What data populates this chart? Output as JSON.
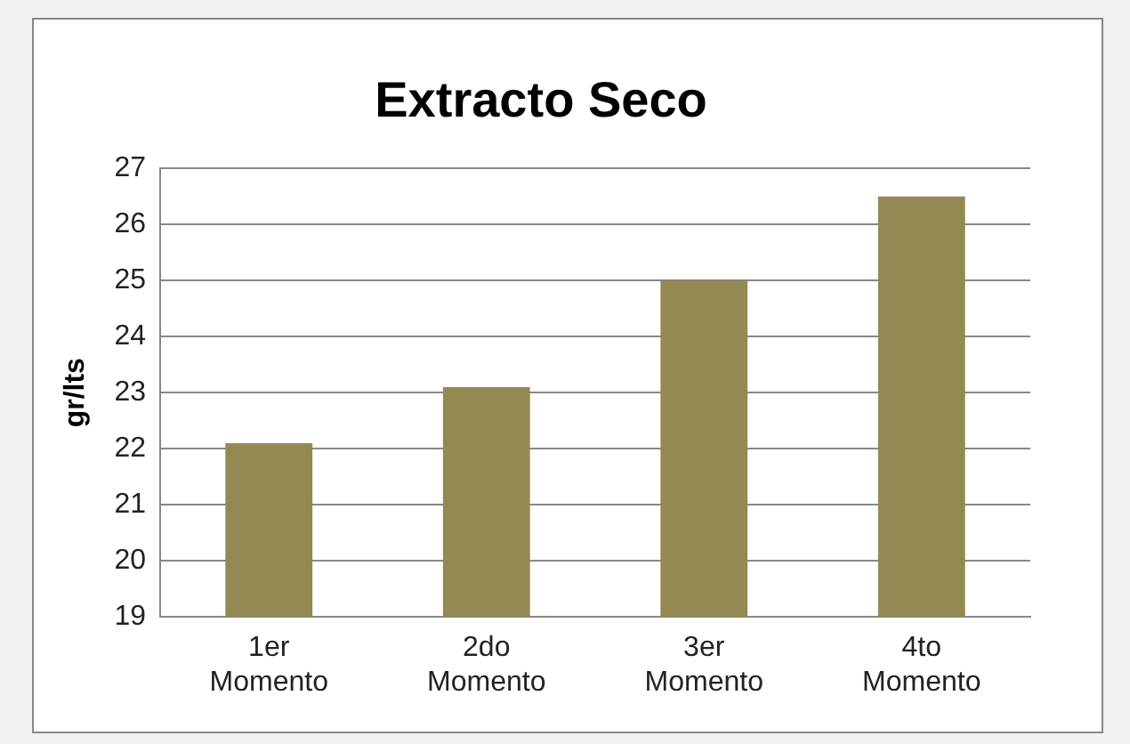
{
  "chart_data": {
    "type": "bar",
    "title": "Extracto Seco",
    "ylabel": "gr/lts",
    "categories": [
      "1er Momento",
      "2do Momento",
      "3er Momento",
      "4to Momento"
    ],
    "values": [
      22.1,
      23.1,
      25.0,
      26.5
    ],
    "color": "#938953",
    "ylim": [
      19,
      27
    ],
    "yticks": [
      19,
      20,
      21,
      22,
      23,
      24,
      25,
      26,
      27
    ],
    "grid": "y",
    "legend": false
  }
}
